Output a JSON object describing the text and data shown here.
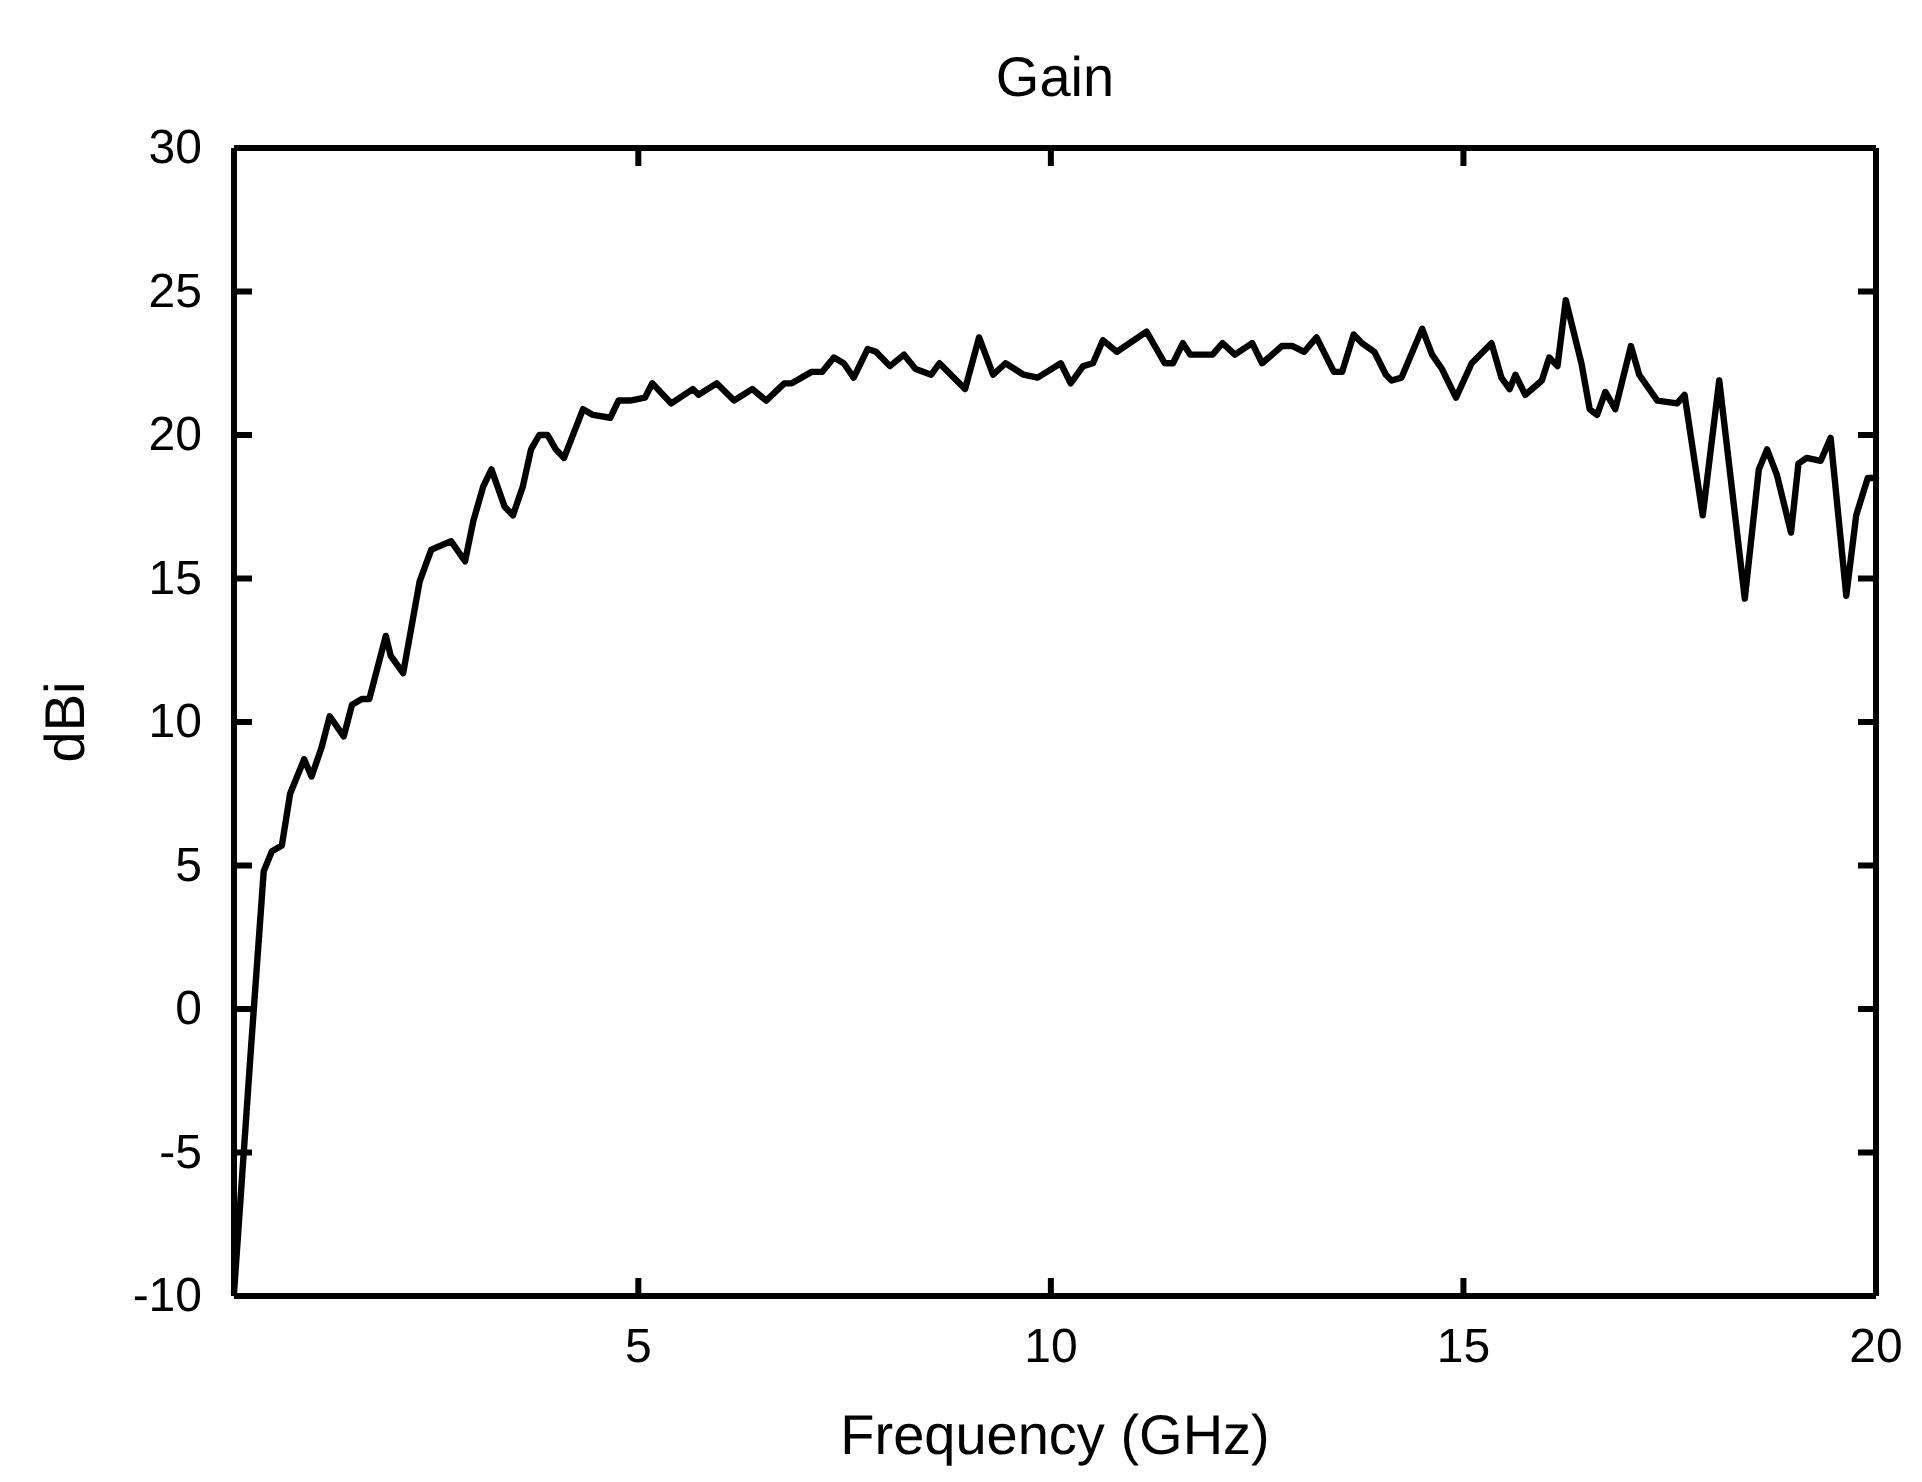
{
  "chart_data": {
    "type": "line",
    "title": "Gain",
    "xlabel": "Frequency (GHz)",
    "ylabel": "dBi",
    "xlim": [
      0.1,
      20
    ],
    "ylim": [
      -10,
      30
    ],
    "xticks": [
      5,
      10,
      15,
      20
    ],
    "yticks": [
      -10,
      -5,
      0,
      5,
      10,
      15,
      20,
      25,
      30
    ],
    "grid": false,
    "marker": "none",
    "line_style": "solid",
    "series": [
      {
        "color": "#000000",
        "x": [
          0.1,
          0.3,
          0.46,
          0.56,
          0.68,
          0.78,
          0.95,
          1.04,
          1.16,
          1.26,
          1.43,
          1.53,
          1.65,
          1.74,
          1.94,
          2.0,
          2.15,
          2.35,
          2.49,
          2.73,
          2.9,
          3.0,
          3.12,
          3.22,
          3.38,
          3.48,
          3.6,
          3.7,
          3.8,
          3.9,
          4.0,
          4.1,
          4.33,
          4.45,
          4.66,
          4.76,
          4.9,
          5.08,
          5.17,
          5.4,
          5.66,
          5.73,
          5.95,
          6.16,
          6.38,
          6.55,
          6.77,
          6.86,
          7.1,
          7.23,
          7.37,
          7.49,
          7.61,
          7.78,
          7.88,
          8.05,
          8.22,
          8.36,
          8.55,
          8.65,
          8.96,
          9.13,
          9.3,
          9.45,
          9.67,
          9.84,
          10.12,
          10.24,
          10.39,
          10.51,
          10.63,
          10.8,
          11.16,
          11.38,
          11.48,
          11.6,
          11.69,
          11.96,
          12.08,
          12.23,
          12.44,
          12.56,
          12.8,
          12.93,
          13.07,
          13.22,
          13.43,
          13.53,
          13.67,
          13.77,
          13.92,
          14.06,
          14.13,
          14.25,
          14.5,
          14.62,
          14.74,
          14.91,
          15.1,
          15.34,
          15.46,
          15.56,
          15.63,
          15.75,
          15.95,
          16.04,
          16.14,
          16.24,
          16.43,
          16.53,
          16.62,
          16.72,
          16.84,
          17.03,
          17.13,
          17.35,
          17.59,
          17.68,
          17.9,
          18.1,
          18.41,
          18.58,
          18.68,
          18.8,
          18.97,
          19.06,
          19.16,
          19.33,
          19.45,
          19.64,
          19.76,
          19.9,
          20
        ],
        "values": [
          -9.9,
          -1.6,
          4.8,
          5.5,
          5.7,
          7.5,
          8.7,
          8.1,
          9.1,
          10.2,
          9.5,
          10.6,
          10.8,
          10.8,
          13.0,
          12.3,
          11.7,
          14.9,
          16.0,
          16.3,
          15.6,
          17.0,
          18.2,
          18.8,
          17.5,
          17.2,
          18.2,
          19.5,
          20.0,
          20.0,
          19.5,
          19.2,
          20.9,
          20.7,
          20.6,
          21.2,
          21.2,
          21.3,
          21.8,
          21.1,
          21.6,
          21.4,
          21.8,
          21.2,
          21.6,
          21.2,
          21.8,
          21.8,
          22.2,
          22.2,
          22.7,
          22.5,
          22.0,
          23.0,
          22.9,
          22.4,
          22.8,
          22.3,
          22.1,
          22.5,
          21.6,
          23.4,
          22.1,
          22.5,
          22.1,
          22.0,
          22.5,
          21.8,
          22.4,
          22.5,
          23.3,
          22.9,
          23.6,
          22.5,
          22.5,
          23.2,
          22.8,
          22.8,
          23.2,
          22.8,
          23.2,
          22.5,
          23.1,
          23.1,
          22.9,
          23.4,
          22.2,
          22.2,
          23.5,
          23.2,
          22.9,
          22.1,
          21.9,
          22.0,
          23.7,
          22.8,
          22.3,
          21.3,
          22.5,
          23.2,
          22.0,
          21.6,
          22.1,
          21.4,
          21.9,
          22.7,
          22.4,
          24.7,
          22.5,
          20.9,
          20.7,
          21.5,
          20.9,
          23.1,
          22.1,
          21.2,
          21.1,
          21.4,
          17.2,
          21.9,
          14.3,
          18.8,
          19.5,
          18.6,
          16.6,
          19.0,
          19.2,
          19.1,
          19.9,
          14.4,
          17.2,
          18.5,
          18.5
        ]
      }
    ]
  }
}
